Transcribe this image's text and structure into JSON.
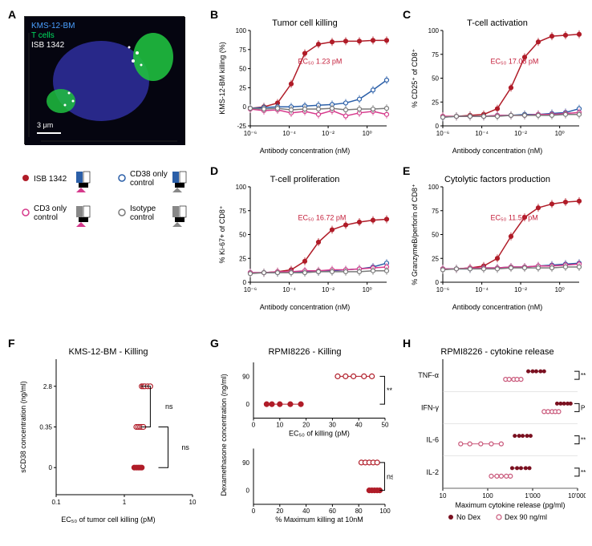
{
  "colors": {
    "isb": "#b01c28",
    "cd38": "#2b5fa8",
    "cd3": "#d63a8c",
    "isotype": "#7a7a7a",
    "axisText": "#000000",
    "grid": "#d0d0d0",
    "dex": "#c9577a",
    "nodex": "#7a1020"
  },
  "microscopy": {
    "labels": [
      "KMS-12-BM",
      "T cells",
      "ISB 1342"
    ],
    "labelColors": [
      "#4aa0ff",
      "#00e060",
      "#ffffff"
    ],
    "scaleBar": "3 μm"
  },
  "controlLegend": {
    "items": [
      {
        "label": "ISB 1342",
        "color": "#b01c28",
        "filled": true
      },
      {
        "label": "CD38 only control",
        "color": "#2b5fa8",
        "filled": false
      },
      {
        "label": "CD3 only control",
        "color": "#d63a8c",
        "filled": false
      },
      {
        "label": "Isotype control",
        "color": "#7a7a7a",
        "filled": false
      }
    ]
  },
  "panelB": {
    "title": "Tumor cell killing",
    "ylabel": "KMS-12-BM killing (%)",
    "xlabel": "Antibody concentration (nM)",
    "ec50": "EC₅₀ 1.23 pM",
    "ylim": [
      -25,
      100
    ],
    "yticks": [
      -25,
      0,
      25,
      50,
      75,
      100
    ],
    "xticks": [
      "10⁻⁶",
      "10⁻⁴",
      "10⁻²",
      "10⁰"
    ],
    "series": {
      "isb": [
        -2,
        0,
        5,
        30,
        70,
        82,
        85,
        86,
        86,
        87,
        87
      ],
      "cd38": [
        -2,
        -1,
        0,
        0,
        1,
        2,
        3,
        5,
        10,
        22,
        35
      ],
      "cd3": [
        -3,
        -5,
        -4,
        -8,
        -6,
        -10,
        -5,
        -12,
        -8,
        -6,
        -10
      ],
      "iso": [
        -2,
        -3,
        -2,
        -4,
        -3,
        -3,
        -2,
        -4,
        -3,
        -3,
        -2
      ]
    }
  },
  "panelC": {
    "title": "T-cell activation",
    "ylabel": "% CD25⁺ of CD8⁺",
    "xlabel": "Antibody concentration (nM)",
    "ec50": "EC₅₀ 17.08 pM",
    "ylim": [
      0,
      100
    ],
    "yticks": [
      0,
      25,
      50,
      75,
      100
    ],
    "xticks": [
      "10⁻⁶",
      "10⁻⁴",
      "10⁻²",
      "10⁰"
    ],
    "series": {
      "isb": [
        10,
        10,
        11,
        12,
        18,
        40,
        72,
        88,
        94,
        95,
        96
      ],
      "cd38": [
        9,
        10,
        10,
        10,
        11,
        11,
        12,
        12,
        13,
        14,
        18
      ],
      "cd3": [
        10,
        10,
        10,
        10,
        11,
        11,
        11,
        12,
        12,
        13,
        14
      ],
      "iso": [
        9,
        10,
        10,
        10,
        10,
        11,
        11,
        11,
        11,
        12,
        12
      ]
    }
  },
  "panelD": {
    "title": "T-cell proliferation",
    "ylabel": "% Ki-67+ of CD8⁺",
    "xlabel": "Antibody concentration (nM)",
    "ec50": "EC₅₀ 16.72 pM",
    "ylim": [
      0,
      100
    ],
    "yticks": [
      0,
      25,
      50,
      75,
      100
    ],
    "xticks": [
      "10⁻⁶",
      "10⁻⁴",
      "10⁻²",
      "10⁰"
    ],
    "series": {
      "isb": [
        10,
        10,
        11,
        13,
        22,
        42,
        55,
        60,
        63,
        65,
        66
      ],
      "cd38": [
        10,
        10,
        10,
        11,
        11,
        11,
        12,
        13,
        14,
        16,
        20
      ],
      "cd3": [
        10,
        10,
        11,
        11,
        12,
        12,
        13,
        13,
        14,
        15,
        16
      ],
      "iso": [
        9,
        10,
        10,
        10,
        10,
        11,
        11,
        11,
        11,
        12,
        12
      ]
    }
  },
  "panelE": {
    "title": "Cytolytic factors production",
    "ylabel": "% GranzymeB/perforin of CD8⁺",
    "xlabel": "Antibody concentration (nM)",
    "ec50": "EC₅₀ 11.53 pM",
    "ylim": [
      0,
      100
    ],
    "yticks": [
      0,
      25,
      50,
      75,
      100
    ],
    "xticks": [
      "10⁻⁶",
      "10⁻⁴",
      "10⁻²",
      "10⁰"
    ],
    "series": {
      "isb": [
        14,
        14,
        15,
        17,
        25,
        48,
        68,
        78,
        82,
        84,
        85
      ],
      "cd38": [
        14,
        14,
        14,
        15,
        15,
        16,
        16,
        17,
        18,
        19,
        20
      ],
      "cd3": [
        14,
        14,
        15,
        15,
        15,
        16,
        16,
        17,
        17,
        18,
        19
      ],
      "iso": [
        13,
        14,
        14,
        14,
        14,
        15,
        15,
        15,
        15,
        16,
        16
      ]
    }
  },
  "panelF": {
    "title": "KMS-12-BM - Killing",
    "ylabel": "sCD38 concentration (ng/ml)",
    "xlabel": "EC₅₀ of tumor cell killing (pM)",
    "yticks": [
      "0",
      "0.35",
      "2.8"
    ],
    "xticks": [
      "0.1",
      "1",
      "10"
    ],
    "groups": [
      {
        "y": 2,
        "vals": [
          1.8,
          1.9,
          2.0,
          2.2,
          2.4
        ],
        "sig": "ns"
      },
      {
        "y": 1,
        "vals": [
          1.5,
          1.6,
          1.7,
          1.8,
          1.9
        ],
        "sig": "ns"
      },
      {
        "y": 0,
        "vals": [
          1.4,
          1.5,
          1.6,
          1.7,
          1.8
        ]
      }
    ]
  },
  "panelG": {
    "title": "RPMI8226 - Killing",
    "ylabel": "Dexamethasone concentration (ng/ml)",
    "top": {
      "xlabel": "EC₅₀ of killing (pM)",
      "xlim": [
        0,
        50
      ],
      "xticks": [
        0,
        10,
        20,
        30,
        40,
        50
      ],
      "rows": [
        {
          "y": 90,
          "vals": [
            32,
            35,
            38,
            42,
            45
          ],
          "sig": "**"
        },
        {
          "y": 0,
          "vals": [
            5,
            7,
            10,
            14,
            18
          ]
        }
      ]
    },
    "bottom": {
      "xlabel": "% Maximum killing at 10nM",
      "xlim": [
        0,
        100
      ],
      "xticks": [
        0,
        20,
        40,
        60,
        80,
        100
      ],
      "rows": [
        {
          "y": 90,
          "vals": [
            82,
            85,
            88,
            91,
            94
          ],
          "sig": "ns"
        },
        {
          "y": 0,
          "vals": [
            88,
            90,
            92,
            94,
            96
          ]
        }
      ]
    }
  },
  "panelH": {
    "title": "RPMI8226 - cytokine release",
    "xlabel": "Maximum cytokine release (pg/ml)",
    "xticks": [
      "10",
      "100",
      "1'000",
      "10'000"
    ],
    "cytokines": [
      "TNF-α",
      "IFN-γ",
      "IL-6",
      "IL-2"
    ],
    "sigs": [
      "***",
      "P = .06",
      "**",
      "**"
    ],
    "legend": [
      {
        "label": "No Dex",
        "color": "#7a1020",
        "filled": true
      },
      {
        "label": "Dex 90 ng/ml",
        "color": "#c9577a",
        "filled": false
      }
    ],
    "data": {
      "nodex": [
        [
          800,
          1000,
          1200,
          1500,
          1800
        ],
        [
          3500,
          4200,
          5000,
          6000,
          7000
        ],
        [
          400,
          500,
          600,
          750,
          900
        ],
        [
          350,
          450,
          550,
          700,
          850
        ]
      ],
      "dex": [
        [
          250,
          300,
          380,
          450,
          550
        ],
        [
          1800,
          2200,
          2700,
          3200,
          3800
        ],
        [
          25,
          40,
          70,
          120,
          200
        ],
        [
          120,
          160,
          200,
          260,
          320
        ]
      ]
    }
  }
}
